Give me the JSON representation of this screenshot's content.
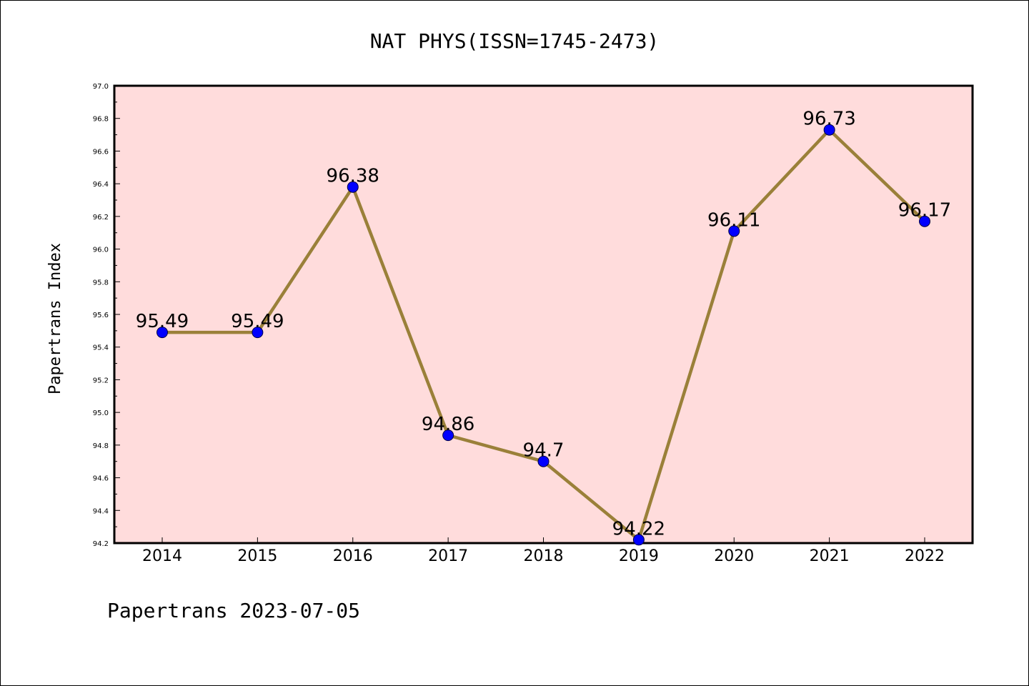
{
  "footer": "Papertrans 2023-07-05",
  "chart_data": {
    "type": "line",
    "title": "NAT PHYS(ISSN=1745-2473)",
    "xlabel": "",
    "ylabel": "Papertrans Index",
    "categories": [
      "2014",
      "2015",
      "2016",
      "2017",
      "2018",
      "2019",
      "2020",
      "2021",
      "2022"
    ],
    "values": [
      95.49,
      95.49,
      96.38,
      94.86,
      94.7,
      94.22,
      96.11,
      96.73,
      96.17
    ],
    "data_labels": [
      "95.49",
      "95.49",
      "96.38",
      "94.86",
      "94.7",
      "94.22",
      "96.11",
      "96.73",
      "96.17"
    ],
    "ylim": [
      94.2,
      97.0
    ],
    "yticks": [
      "94.2",
      "94.4",
      "94.6",
      "94.8",
      "95.0",
      "95.2",
      "95.4",
      "95.6",
      "95.8",
      "96.0",
      "96.2",
      "96.4",
      "96.6",
      "96.8",
      "97.0"
    ],
    "grid": false,
    "legend": "none",
    "colors": {
      "plot_background": "#ffdcdc",
      "line": "#9a8039",
      "marker": "#0000ff"
    }
  }
}
